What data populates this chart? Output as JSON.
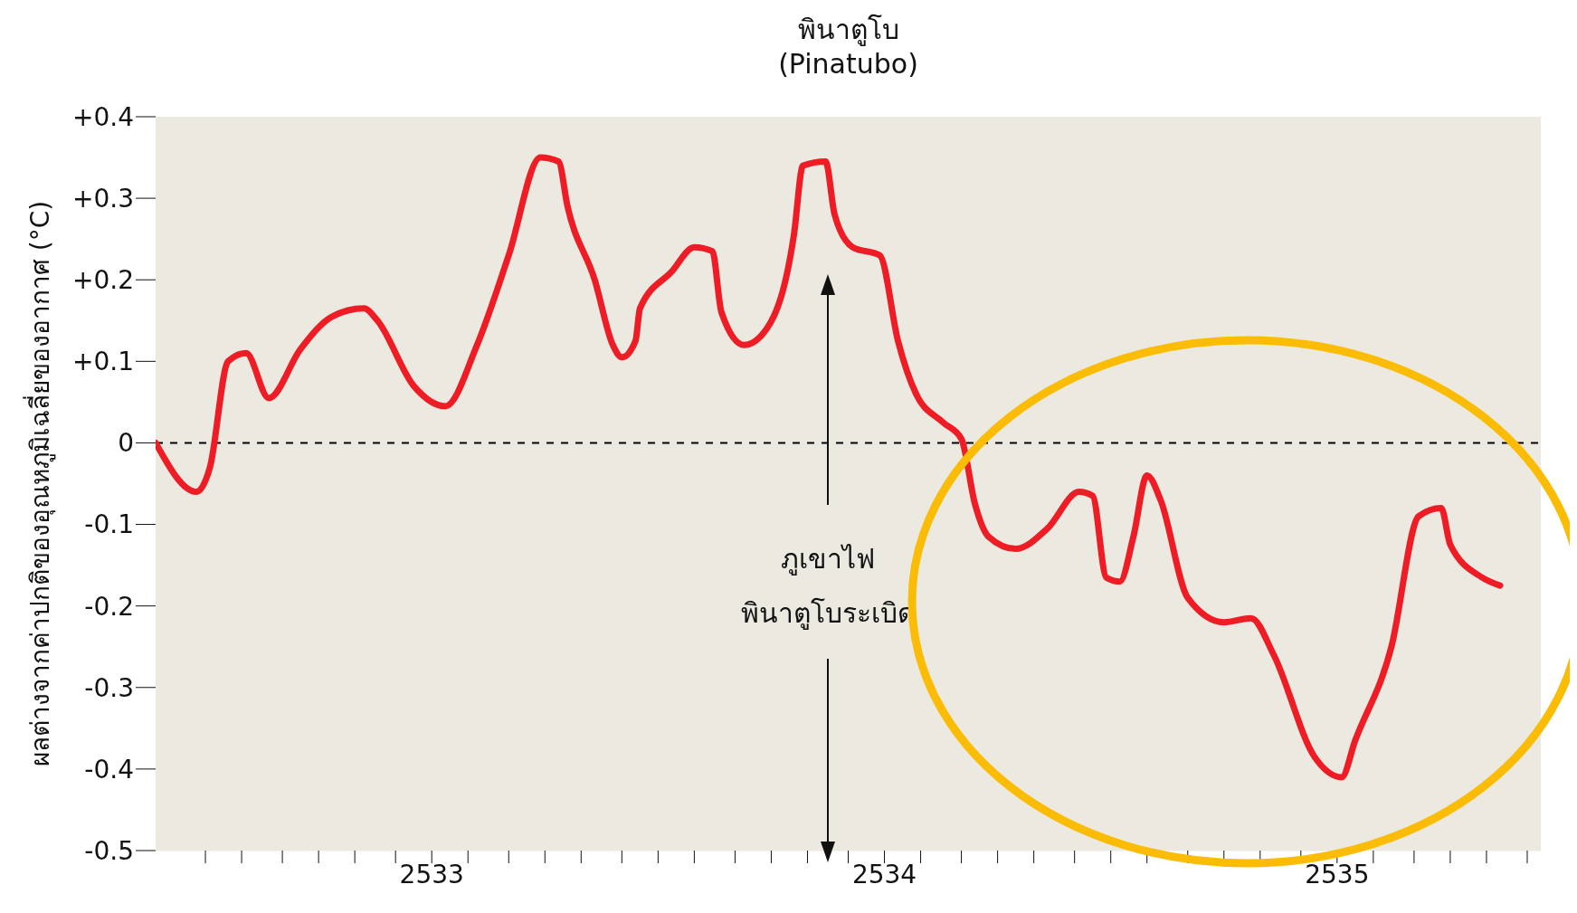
{
  "chart_data": {
    "type": "line",
    "title": "พินาตูโบ",
    "subtitle": "(Pinatubo)",
    "ylabel": "ผลต่างจากค่าปกติของอุณหภูมิเฉลี่ยของอากาศ (°C)",
    "x": [
      2532.39,
      2532.48,
      2532.51,
      2532.55,
      2532.59,
      2532.64,
      2532.71,
      2532.78,
      2532.85,
      2532.88,
      2532.96,
      2533.03,
      2533.1,
      2533.17,
      2533.24,
      2533.28,
      2533.3,
      2533.36,
      2533.4,
      2533.42,
      2533.45,
      2533.46,
      2533.53,
      2533.58,
      2533.62,
      2533.64,
      2533.69,
      2533.74,
      2533.8,
      2533.82,
      2533.87,
      2533.89,
      2533.93,
      2533.99,
      2534.03,
      2534.07,
      2534.13,
      2534.17,
      2534.2,
      2534.23,
      2534.29,
      2534.36,
      2534.43,
      2534.46,
      2534.49,
      2534.52,
      2534.55,
      2534.58,
      2534.61,
      2534.67,
      2534.75,
      2534.81,
      2534.86,
      2534.95,
      2535.01,
      2535.04,
      2535.12,
      2535.18,
      2535.23,
      2535.25,
      2535.32,
      2535.36
    ],
    "series": [
      {
        "color": "#ee1c25",
        "values": [
          0,
          -0.06,
          -0.03,
          0.1,
          0.11,
          0.055,
          0.115,
          0.155,
          0.165,
          0.15,
          0.07,
          0.045,
          0.12,
          0.23,
          0.35,
          0.345,
          0.29,
          0.2,
          0.12,
          0.105,
          0.125,
          0.165,
          0.21,
          0.24,
          0.235,
          0.16,
          0.12,
          0.14,
          0.255,
          0.34,
          0.345,
          0.28,
          0.24,
          0.23,
          0.125,
          0.06,
          0.025,
          0.005,
          -0.075,
          -0.115,
          -0.13,
          -0.105,
          -0.06,
          -0.065,
          -0.165,
          -0.17,
          -0.115,
          -0.04,
          -0.07,
          -0.19,
          -0.22,
          -0.215,
          -0.26,
          -0.385,
          -0.41,
          -0.365,
          -0.25,
          -0.09,
          -0.08,
          -0.125,
          -0.165,
          -0.175
        ]
      }
    ],
    "xlim": [
      2532.39,
      2535.45
    ],
    "xticks": [
      {
        "value": 2532.5,
        "label": null
      },
      {
        "value": 2532.58,
        "label": null
      },
      {
        "value": 2532.67,
        "label": null
      },
      {
        "value": 2532.75,
        "label": null
      },
      {
        "value": 2532.83,
        "label": null
      },
      {
        "value": 2532.92,
        "label": null
      },
      2533,
      {
        "value": 2533.08,
        "label": null
      },
      {
        "value": 2533.17,
        "label": null
      },
      {
        "value": 2533.25,
        "label": null
      },
      {
        "value": 2533.33,
        "label": null
      },
      {
        "value": 2533.42,
        "label": null
      },
      {
        "value": 2533.5,
        "label": null
      },
      {
        "value": 2533.58,
        "label": null
      },
      {
        "value": 2533.67,
        "label": null
      },
      {
        "value": 2533.75,
        "label": null
      },
      {
        "value": 2533.83,
        "label": null
      },
      {
        "value": 2533.92,
        "label": null
      },
      2534,
      {
        "value": 2534.08,
        "label": null
      },
      {
        "value": 2534.17,
        "label": null
      },
      {
        "value": 2534.25,
        "label": null
      },
      {
        "value": 2534.33,
        "label": null
      },
      {
        "value": 2534.42,
        "label": null
      },
      {
        "value": 2534.5,
        "label": null
      },
      {
        "value": 2534.58,
        "label": null
      },
      {
        "value": 2534.67,
        "label": null
      },
      {
        "value": 2534.75,
        "label": null
      },
      {
        "value": 2534.83,
        "label": null
      },
      {
        "value": 2534.92,
        "label": null
      },
      2535,
      {
        "value": 2535.08,
        "label": null
      },
      {
        "value": 2535.17,
        "label": null
      },
      {
        "value": 2535.25,
        "label": null
      },
      {
        "value": 2535.33,
        "label": null
      },
      {
        "value": 2535.42,
        "label": null
      }
    ],
    "ylim": [
      -0.5,
      0.4
    ],
    "yticks": [
      {
        "value": -0.5,
        "label": "-0.5"
      },
      {
        "value": -0.4,
        "label": "-0.4"
      },
      {
        "value": -0.3,
        "label": "-0.3"
      },
      {
        "value": -0.2,
        "label": "-0.2"
      },
      {
        "value": -0.1,
        "label": "-0.1"
      },
      0,
      {
        "value": 0.1,
        "label": "+0.1"
      },
      {
        "value": 0.2,
        "label": "+0.2"
      },
      {
        "value": 0.3,
        "label": "+0.3"
      },
      {
        "value": 0.4,
        "label": "+0.4"
      }
    ],
    "ref_lines": [
      {
        "axis": "y",
        "value": 0,
        "color": "#000000",
        "line_style": "dashed"
      }
    ],
    "annotations": [
      "ภูเขาไฟ\nพินาตูโบระเบิด"
    ],
    "marker": "none",
    "line_style": "solid"
  }
}
